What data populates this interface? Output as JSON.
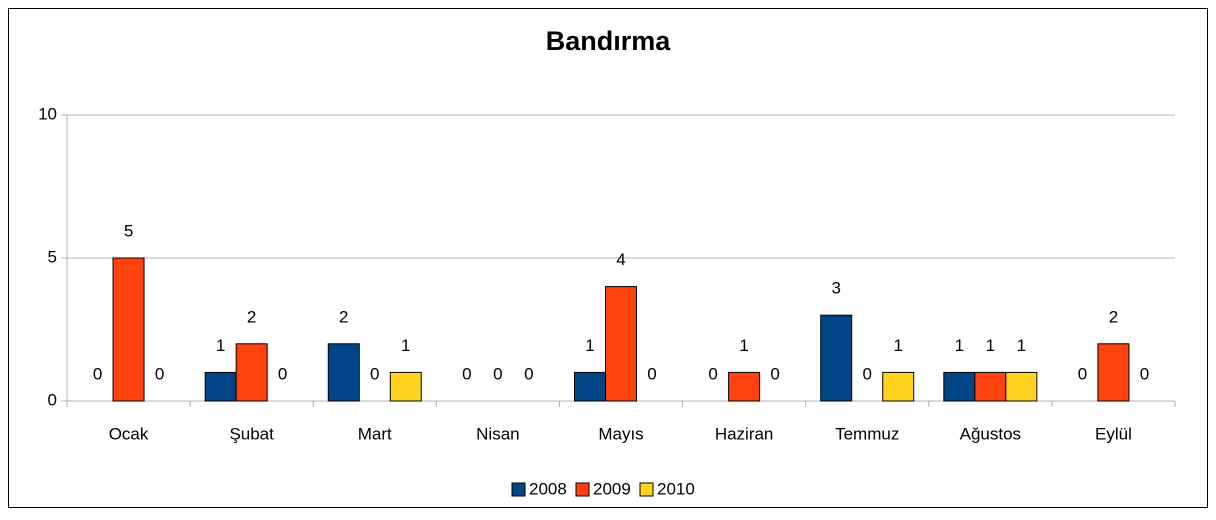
{
  "chart_data": {
    "type": "bar",
    "title": "Bandırma",
    "categories": [
      "Ocak",
      "Şubat",
      "Mart",
      "Nisan",
      "Mayıs",
      "Haziran",
      "Temmuz",
      "Ağustos",
      "Eylül"
    ],
    "series": [
      {
        "name": "2008",
        "color": "#004586",
        "values": [
          0,
          1,
          2,
          0,
          1,
          0,
          3,
          1,
          0
        ]
      },
      {
        "name": "2009",
        "color": "#ff420e",
        "values": [
          5,
          2,
          0,
          0,
          4,
          1,
          0,
          1,
          2
        ]
      },
      {
        "name": "2010",
        "color": "#ffd320",
        "values": [
          0,
          0,
          1,
          0,
          0,
          0,
          1,
          1,
          0
        ]
      }
    ],
    "ylim": [
      0,
      10
    ],
    "yticks": [
      0,
      5,
      10
    ],
    "grid": true,
    "legend": "bottom"
  }
}
